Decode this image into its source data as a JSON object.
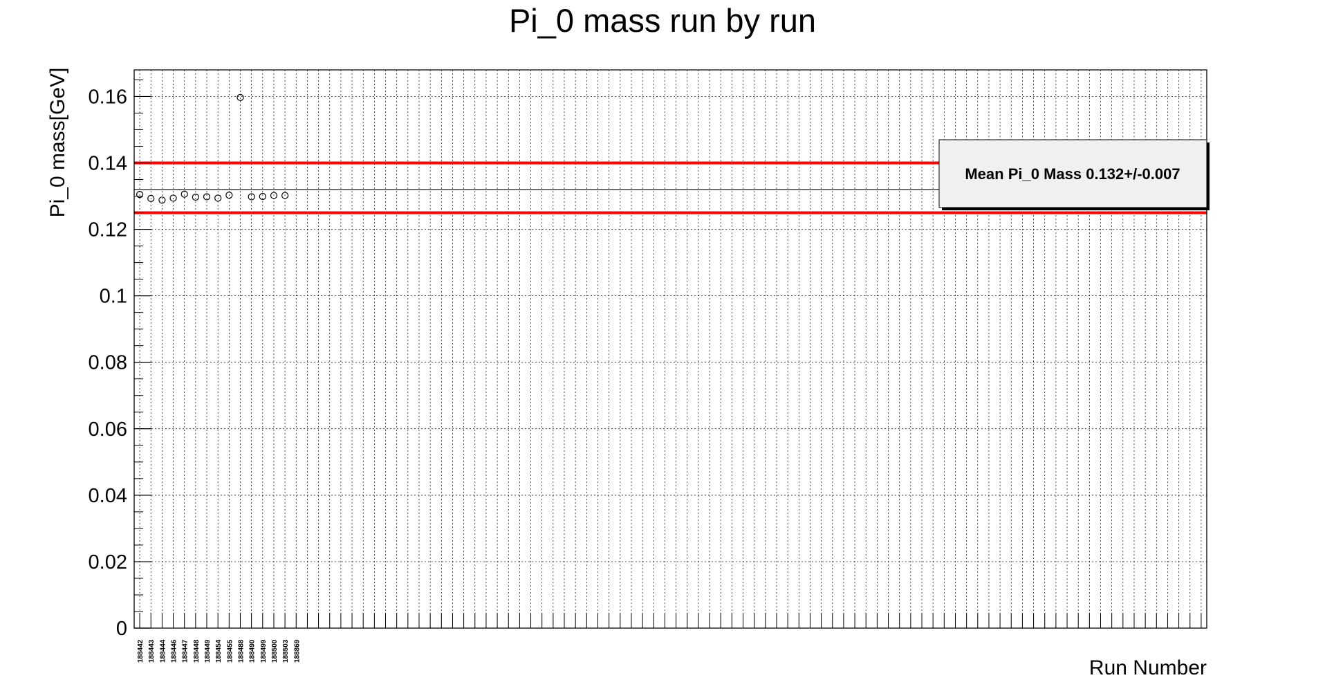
{
  "chart_data": {
    "type": "scatter",
    "title": "Pi_0 mass run by run",
    "xlabel": "Run Number",
    "ylabel": "Pi_0 mass[GeV]",
    "ylim": [
      0,
      0.168
    ],
    "yticks": [
      0,
      0.02,
      0.04,
      0.06,
      0.08,
      0.1,
      0.12,
      0.14,
      0.16
    ],
    "ytick_labels": [
      "0",
      "0.02",
      "0.04",
      "0.06",
      "0.08",
      "0.1",
      "0.12",
      "0.14",
      "0.16"
    ],
    "n_bins": 96,
    "categories": [
      "188442",
      "188443",
      "188444",
      "188446",
      "188447",
      "188448",
      "188449",
      "188454",
      "188455",
      "188488",
      "188490",
      "188499",
      "188500",
      "188503",
      "188869"
    ],
    "values": [
      0.1305,
      0.1293,
      0.1288,
      0.1294,
      0.1306,
      0.1297,
      0.1298,
      0.1294,
      0.1303,
      0.1597,
      0.1298,
      0.1299,
      0.1302,
      0.1302,
      null
    ],
    "mean": 0.132,
    "upper_limit": 0.14,
    "lower_limit": 0.125,
    "colors": {
      "limit_lines": "#ff0000",
      "mean_line": "#000000",
      "markers": "#000000",
      "legend_fill": "#f0f0f0"
    },
    "grid": true,
    "legend": {
      "text": "Mean Pi_0 Mass 0.132+/-0.007",
      "placement": "top-right"
    }
  }
}
